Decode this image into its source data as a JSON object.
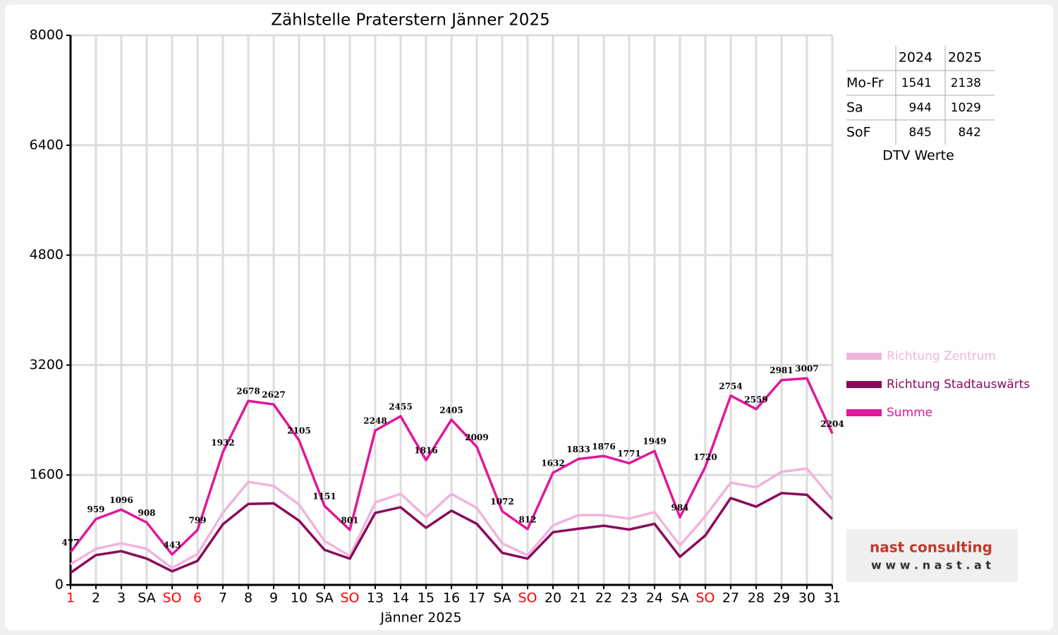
{
  "chart_data": {
    "type": "line",
    "title": "Zählstelle Praterstern Jänner 2025",
    "x_label": "Jänner 2025",
    "categories": [
      "1",
      "2",
      "3",
      "SA",
      "SO",
      "6",
      "7",
      "8",
      "9",
      "10",
      "SA",
      "SO",
      "13",
      "14",
      "15",
      "16",
      "17",
      "SA",
      "SO",
      "20",
      "21",
      "22",
      "23",
      "24",
      "SA",
      "SO",
      "27",
      "28",
      "29",
      "30",
      "31"
    ],
    "category_label_colors": [
      "#ff0000",
      "#000000",
      "#000000",
      "#000000",
      "#ff0000",
      "#ff0000",
      "#000000",
      "#000000",
      "#000000",
      "#000000",
      "#000000",
      "#ff0000",
      "#000000",
      "#000000",
      "#000000",
      "#000000",
      "#000000",
      "#000000",
      "#ff0000",
      "#000000",
      "#000000",
      "#000000",
      "#000000",
      "#000000",
      "#000000",
      "#ff0000",
      "#000000",
      "#000000",
      "#000000",
      "#000000",
      "#000000"
    ],
    "series": [
      {
        "name": "Richtung Zentrum",
        "color": "#f0b4dc",
        "data_labels": false,
        "values": [
          300,
          525,
          605,
          525,
          245,
          450,
          1050,
          1500,
          1440,
          1170,
          640,
          420,
          1200,
          1325,
          985,
          1325,
          1120,
          605,
          430,
          865,
          1015,
          1015,
          965,
          1060,
          575,
          1000,
          1490,
          1420,
          1645,
          1695,
          1245
        ]
      },
      {
        "name": "Richtung Stadtauswärts",
        "color": "#8a0a5c",
        "data_labels": false,
        "values": [
          177,
          434,
          491,
          383,
          198,
          349,
          882,
          1178,
          1187,
          935,
          511,
          381,
          1048,
          1130,
          831,
          1080,
          889,
          467,
          382,
          767,
          818,
          861,
          806,
          889,
          409,
          720,
          1264,
          1139,
          1336,
          1312,
          959
        ]
      },
      {
        "name": "Summe",
        "color": "#e0189a",
        "data_labels": true,
        "values": [
          477,
          959,
          1096,
          908,
          443,
          799,
          1932,
          2678,
          2627,
          2105,
          1151,
          801,
          2248,
          2455,
          1816,
          2405,
          2009,
          1072,
          812,
          1632,
          1833,
          1876,
          1771,
          1949,
          984,
          1720,
          2754,
          2559,
          2981,
          3007,
          2204
        ]
      }
    ],
    "ylim": [
      0,
      8000
    ],
    "yticks": [
      0,
      1600,
      3200,
      4800,
      6400,
      8000
    ],
    "grid": true
  },
  "table": {
    "columns": [
      "2024",
      "2025"
    ],
    "rows": [
      {
        "label": "Mo-Fr",
        "values": [
          1541,
          2138
        ]
      },
      {
        "label": "Sa",
        "values": [
          944,
          1029
        ]
      },
      {
        "label": "SoF",
        "values": [
          845,
          842
        ]
      }
    ],
    "caption": "DTV Werte"
  },
  "logo": {
    "name": "nast consulting",
    "url": "w w w . n a s t . a t"
  }
}
